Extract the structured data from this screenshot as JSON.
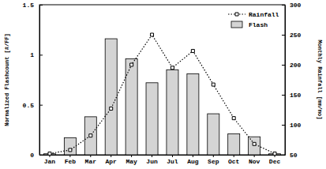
{
  "chart_data": {
    "type": "bar",
    "categories": [
      "Jan",
      "Feb",
      "Mar",
      "Apr",
      "May",
      "Jun",
      "Jul",
      "Aug",
      "Sep",
      "Oct",
      "Nov",
      "Dec"
    ],
    "y_label": "Normalized Flashcount [#/FF]",
    "y2_label": "Monthly Rainfall [mm/mo]",
    "ylim": [
      0,
      1.5
    ],
    "yticks": [
      0,
      0.5,
      1,
      1.5
    ],
    "y2lim": [
      50,
      300
    ],
    "y2ticks": [
      50,
      100,
      150,
      200,
      250,
      300
    ],
    "legend": "top-right",
    "series": [
      {
        "name": "Flash",
        "type": "bar",
        "color": "#d4d4d4",
        "values": [
          0.01,
          0.17,
          0.38,
          1.16,
          0.96,
          0.72,
          0.85,
          0.81,
          0.41,
          0.21,
          0.18,
          0.01
        ]
      },
      {
        "name": "Rainfall",
        "type": "line",
        "axis": "y2",
        "color": "#000000",
        "marker": "square",
        "line_style": "dotted",
        "values": [
          52,
          58,
          82,
          127,
          200,
          250,
          195,
          223,
          167,
          111,
          68,
          52
        ]
      }
    ]
  }
}
